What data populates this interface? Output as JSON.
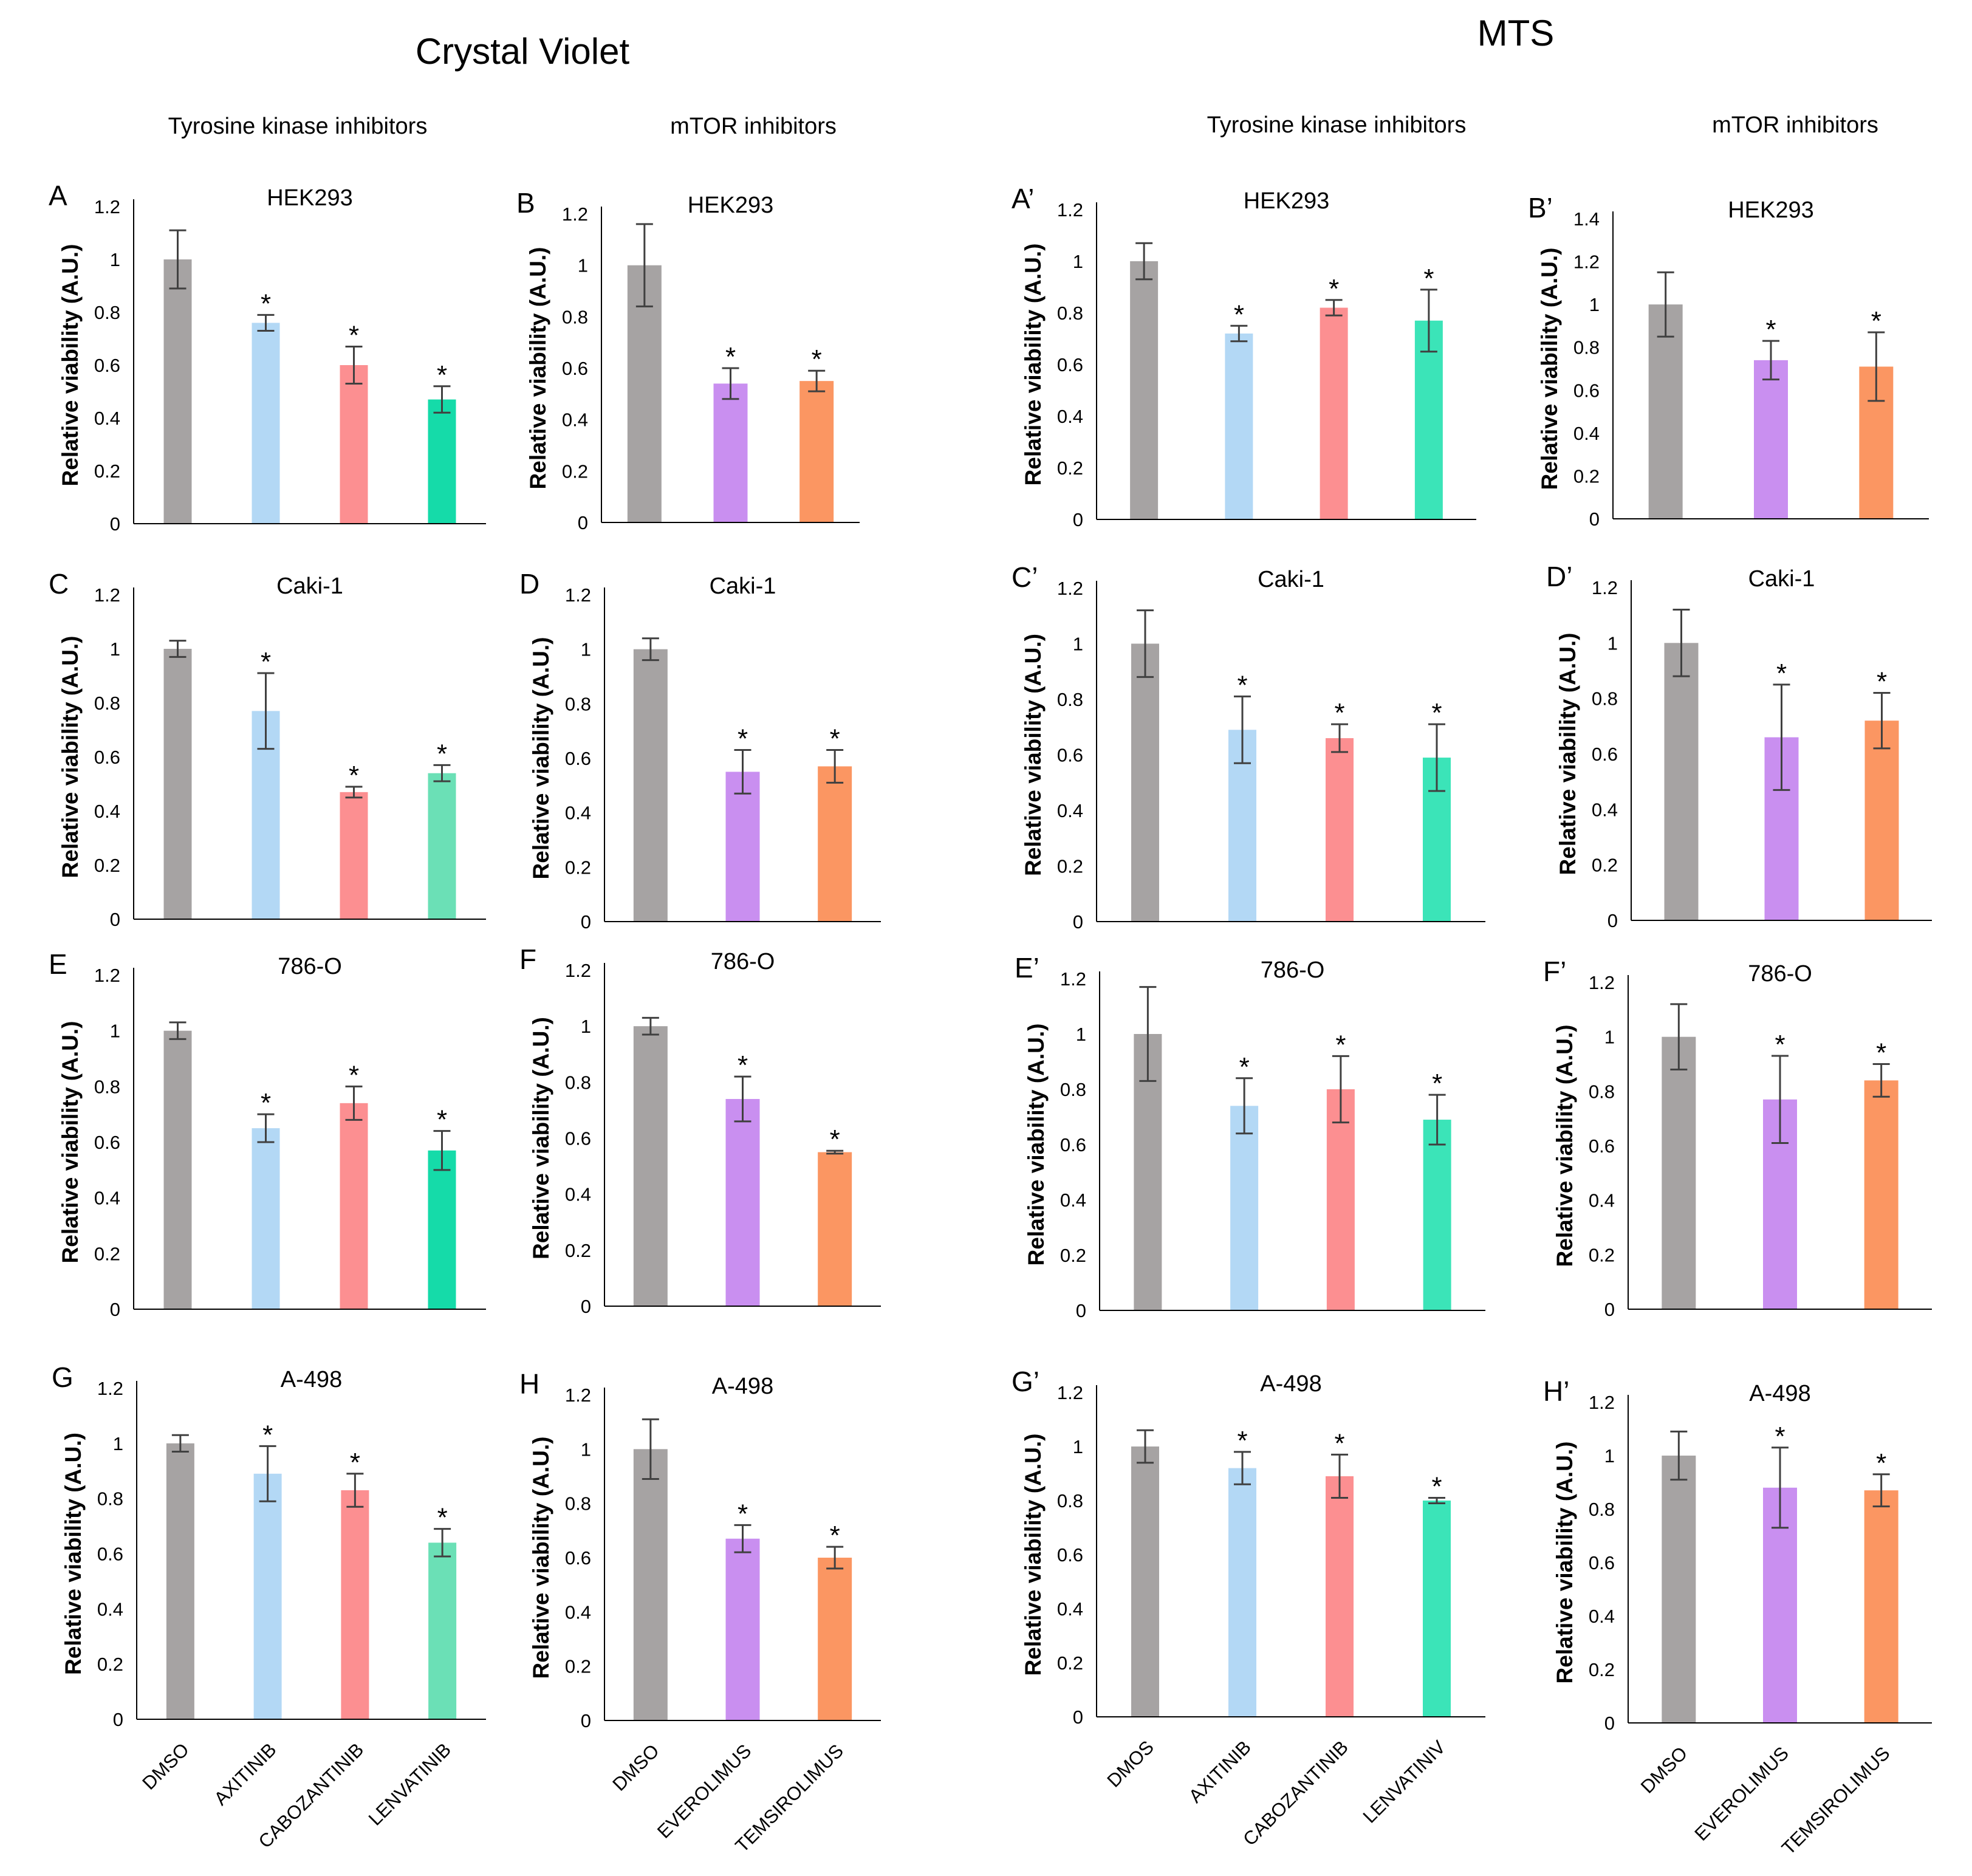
{
  "headers": {
    "crystal_violet": "Crystal Violet",
    "mts": "MTS",
    "tki_cv": "Tyrosine kinase inhibitors",
    "mtor_cv": "mTOR inhibitors",
    "tki_mts": "Tyrosine kinase inhibitors",
    "mtor_mts": "mTOR inhibitors"
  },
  "colors": {
    "gray": "#a6a3a3",
    "blue": "#b3d8f5",
    "red": "#fc8f91",
    "green_bright": "#15dba9",
    "green_soft": "#6be0b6",
    "green_mts": "#3be4b8",
    "purple": "#c98ff0",
    "orange": "#fb9662",
    "axis": "#000000",
    "error_bar": "#404040"
  },
  "chart_data": [
    {
      "id": "A",
      "type": "bar",
      "panel_label": "A",
      "title": "HEK293",
      "ylabel": "Relative viability (A.U.)",
      "ylim": [
        0,
        1.2
      ],
      "yticks": [
        "0",
        "0.2",
        "0.4",
        "0.6",
        "0.8",
        "1",
        "1.2"
      ],
      "categories": [
        "DMSO",
        "AXITINIB",
        "CABOZANTINIB",
        "LENVATINIB"
      ],
      "values": [
        1.0,
        0.76,
        0.6,
        0.47
      ],
      "errors": [
        0.11,
        0.03,
        0.07,
        0.05
      ],
      "stars": [
        false,
        true,
        true,
        true
      ],
      "colors": [
        "gray",
        "blue",
        "red",
        "green_bright"
      ]
    },
    {
      "id": "B",
      "type": "bar",
      "panel_label": "B",
      "title": "HEK293",
      "ylabel": "Relative viability (A.U.)",
      "ylim": [
        0,
        1.2
      ],
      "yticks": [
        "0",
        "0.2",
        "0.4",
        "0.6",
        "0.8",
        "1",
        "1.2"
      ],
      "categories": [
        "DMSO",
        "EVEROLIMUS",
        "TEMSIROLIMUS"
      ],
      "values": [
        1.0,
        0.54,
        0.55
      ],
      "errors": [
        0.16,
        0.06,
        0.04
      ],
      "stars": [
        false,
        true,
        true
      ],
      "colors": [
        "gray",
        "purple",
        "orange"
      ]
    },
    {
      "id": "A2",
      "type": "bar",
      "panel_label": "A’",
      "title": "HEK293",
      "ylabel": "Relative viability (A.U.)",
      "ylim": [
        0,
        1.2
      ],
      "yticks": [
        "0",
        "0.2",
        "0.4",
        "0.6",
        "0.8",
        "1",
        "1.2"
      ],
      "categories": [
        "DMOS",
        "AXITINIB",
        "CABOZANTINIB",
        "LENVATINIV"
      ],
      "values": [
        1.0,
        0.72,
        0.82,
        0.77
      ],
      "errors": [
        0.07,
        0.03,
        0.03,
        0.12
      ],
      "stars": [
        false,
        true,
        true,
        true
      ],
      "colors": [
        "gray",
        "blue",
        "red",
        "green_mts"
      ]
    },
    {
      "id": "B2",
      "type": "bar",
      "panel_label": "B’",
      "title": "HEK293",
      "ylabel": "Relative viability (A.U.)",
      "ylim": [
        0,
        1.4
      ],
      "yticks": [
        "0",
        "0.2",
        "0.4",
        "0.6",
        "0.8",
        "1",
        "1.2",
        "1.4"
      ],
      "categories": [
        "DMSO",
        "EVEROLIMUS",
        "TEMSIROLIMUS"
      ],
      "values": [
        1.0,
        0.74,
        0.71
      ],
      "errors": [
        0.15,
        0.09,
        0.16
      ],
      "stars": [
        false,
        true,
        true
      ],
      "colors": [
        "gray",
        "purple",
        "orange"
      ]
    },
    {
      "id": "C",
      "type": "bar",
      "panel_label": "C",
      "title": "Caki-1",
      "ylabel": "Relative viability (A.U.)",
      "ylim": [
        0,
        1.2
      ],
      "yticks": [
        "0",
        "0.2",
        "0.4",
        "0.6",
        "0.8",
        "1",
        "1.2"
      ],
      "categories": [
        "DMSO",
        "AXITINIB",
        "CABOZANTINIB",
        "LENVATINIB"
      ],
      "values": [
        1.0,
        0.77,
        0.47,
        0.54
      ],
      "errors": [
        0.03,
        0.14,
        0.02,
        0.03
      ],
      "stars": [
        false,
        true,
        true,
        true
      ],
      "colors": [
        "gray",
        "blue",
        "red",
        "green_soft"
      ]
    },
    {
      "id": "D",
      "type": "bar",
      "panel_label": "D",
      "title": "Caki-1",
      "ylabel": "Relative viability (A.U.)",
      "ylim": [
        0,
        1.2
      ],
      "yticks": [
        "0",
        "0.2",
        "0.4",
        "0.6",
        "0.8",
        "1",
        "1.2"
      ],
      "categories": [
        "DMSO",
        "EVEROLIMUS",
        "TEMSIROLIMUS"
      ],
      "values": [
        1.0,
        0.55,
        0.57
      ],
      "errors": [
        0.04,
        0.08,
        0.06
      ],
      "stars": [
        false,
        true,
        true
      ],
      "colors": [
        "gray",
        "purple",
        "orange"
      ]
    },
    {
      "id": "C2",
      "type": "bar",
      "panel_label": "C’",
      "title": "Caki-1",
      "ylabel": "Relative viability (A.U.)",
      "ylim": [
        0,
        1.2
      ],
      "yticks": [
        "0",
        "0.2",
        "0.4",
        "0.6",
        "0.8",
        "1",
        "1.2"
      ],
      "categories": [
        "DMOS",
        "AXITINIB",
        "CABOZANTINIB",
        "LENVATINIV"
      ],
      "values": [
        1.0,
        0.69,
        0.66,
        0.59
      ],
      "errors": [
        0.12,
        0.12,
        0.05,
        0.12
      ],
      "stars": [
        false,
        true,
        true,
        true
      ],
      "colors": [
        "gray",
        "blue",
        "red",
        "green_mts"
      ]
    },
    {
      "id": "D2",
      "type": "bar",
      "panel_label": "D’",
      "title": "Caki-1",
      "ylabel": "Relative viability (A.U.)",
      "ylim": [
        0,
        1.2
      ],
      "yticks": [
        "0",
        "0.2",
        "0.4",
        "0.6",
        "0.8",
        "1",
        "1.2"
      ],
      "categories": [
        "DMSO",
        "EVEROLIMUS",
        "TEMSIROLIMUS"
      ],
      "values": [
        1.0,
        0.66,
        0.72
      ],
      "errors": [
        0.12,
        0.19,
        0.1
      ],
      "stars": [
        false,
        true,
        true
      ],
      "colors": [
        "gray",
        "purple",
        "orange"
      ]
    },
    {
      "id": "E",
      "type": "bar",
      "panel_label": "E",
      "title": "786-O",
      "ylabel": "Relative viability (A.U.)",
      "ylim": [
        0,
        1.2
      ],
      "yticks": [
        "0",
        "0.2",
        "0.4",
        "0.6",
        "0.8",
        "1",
        "1.2"
      ],
      "categories": [
        "DMSO",
        "AXITINIB",
        "CABOZANTINIB",
        "LENVATINIB"
      ],
      "values": [
        1.0,
        0.65,
        0.74,
        0.57
      ],
      "errors": [
        0.03,
        0.05,
        0.06,
        0.07
      ],
      "stars": [
        false,
        true,
        true,
        true
      ],
      "colors": [
        "gray",
        "blue",
        "red",
        "green_bright"
      ]
    },
    {
      "id": "F",
      "type": "bar",
      "panel_label": "F",
      "title": "786-O",
      "ylabel": "Relative viability (A.U.)",
      "ylim": [
        0,
        1.2
      ],
      "yticks": [
        "0",
        "0.2",
        "0.4",
        "0.6",
        "0.8",
        "1",
        "1.2"
      ],
      "categories": [
        "DMSO",
        "EVEROLIMUS",
        "TEMSIROLIMUS"
      ],
      "values": [
        1.0,
        0.74,
        0.55
      ],
      "errors": [
        0.03,
        0.08,
        0.005
      ],
      "stars": [
        false,
        true,
        true
      ],
      "colors": [
        "gray",
        "purple",
        "orange"
      ]
    },
    {
      "id": "E2",
      "type": "bar",
      "panel_label": "E’",
      "title": "786-O",
      "ylabel": "Relative viability (A.U.)",
      "ylim": [
        0,
        1.2
      ],
      "yticks": [
        "0",
        "0.2",
        "0.4",
        "0.6",
        "0.8",
        "1",
        "1.2"
      ],
      "categories": [
        "DMOS",
        "AXITINIB",
        "CABOZANTINIB",
        "LENVATINIV"
      ],
      "values": [
        1.0,
        0.74,
        0.8,
        0.69
      ],
      "errors": [
        0.17,
        0.1,
        0.12,
        0.09
      ],
      "stars": [
        false,
        true,
        true,
        true
      ],
      "colors": [
        "gray",
        "blue",
        "red",
        "green_mts"
      ]
    },
    {
      "id": "F2",
      "type": "bar",
      "panel_label": "F’",
      "title": "786-O",
      "ylabel": "Relative viability (A.U.)",
      "ylim": [
        0,
        1.2
      ],
      "yticks": [
        "0",
        "0.2",
        "0.4",
        "0.6",
        "0.8",
        "1",
        "1.2"
      ],
      "categories": [
        "DMSO",
        "EVEROLIMUS",
        "TEMSIROLIMUS"
      ],
      "values": [
        1.0,
        0.77,
        0.84
      ],
      "errors": [
        0.12,
        0.16,
        0.06
      ],
      "stars": [
        false,
        true,
        true
      ],
      "colors": [
        "gray",
        "purple",
        "orange"
      ]
    },
    {
      "id": "G",
      "type": "bar",
      "panel_label": "G",
      "title": "A-498",
      "ylabel": "Relative viability (A.U.)",
      "ylim": [
        0,
        1.2
      ],
      "yticks": [
        "0",
        "0.2",
        "0.4",
        "0.6",
        "0.8",
        "1",
        "1.2"
      ],
      "categories": [
        "DMSO",
        "AXITINIB",
        "CABOZANTINIB",
        "LENVATINIB"
      ],
      "values": [
        1.0,
        0.89,
        0.83,
        0.64
      ],
      "errors": [
        0.03,
        0.1,
        0.06,
        0.05
      ],
      "stars": [
        false,
        true,
        true,
        true
      ],
      "colors": [
        "gray",
        "blue",
        "red",
        "green_soft"
      ]
    },
    {
      "id": "H",
      "type": "bar",
      "panel_label": "H",
      "title": "A-498",
      "ylabel": "Relative viability (A.U.)",
      "ylim": [
        0,
        1.2
      ],
      "yticks": [
        "0",
        "0.2",
        "0.4",
        "0.6",
        "0.8",
        "1",
        "1.2"
      ],
      "categories": [
        "DMSO",
        "EVEROLIMUS",
        "TEMSIROLIMUS"
      ],
      "values": [
        1.0,
        0.67,
        0.6
      ],
      "errors": [
        0.11,
        0.05,
        0.04
      ],
      "stars": [
        false,
        true,
        true
      ],
      "colors": [
        "gray",
        "purple",
        "orange"
      ]
    },
    {
      "id": "G2",
      "type": "bar",
      "panel_label": "G’",
      "title": "A-498",
      "ylabel": "Relative viability (A.U.)",
      "ylim": [
        0,
        1.2
      ],
      "yticks": [
        "0",
        "0.2",
        "0.4",
        "0.6",
        "0.8",
        "1",
        "1.2"
      ],
      "categories": [
        "DMOS",
        "AXITINIB",
        "CABOZANTINIB",
        "LENVATINIV"
      ],
      "values": [
        1.0,
        0.92,
        0.89,
        0.8
      ],
      "errors": [
        0.06,
        0.06,
        0.08,
        0.01
      ],
      "stars": [
        false,
        true,
        true,
        true
      ],
      "colors": [
        "gray",
        "blue",
        "red",
        "green_mts"
      ]
    },
    {
      "id": "H2",
      "type": "bar",
      "panel_label": "H’",
      "title": "A-498",
      "ylabel": "Relative viability (A.U.)",
      "ylim": [
        0,
        1.2
      ],
      "yticks": [
        "0",
        "0.2",
        "0.4",
        "0.6",
        "0.8",
        "1",
        "1.2"
      ],
      "categories": [
        "DMSO",
        "EVEROLIMUS",
        "TEMSIROLIMUS"
      ],
      "values": [
        1.0,
        0.88,
        0.87
      ],
      "errors": [
        0.09,
        0.15,
        0.06
      ],
      "stars": [
        false,
        true,
        true
      ],
      "colors": [
        "gray",
        "purple",
        "orange"
      ]
    }
  ]
}
